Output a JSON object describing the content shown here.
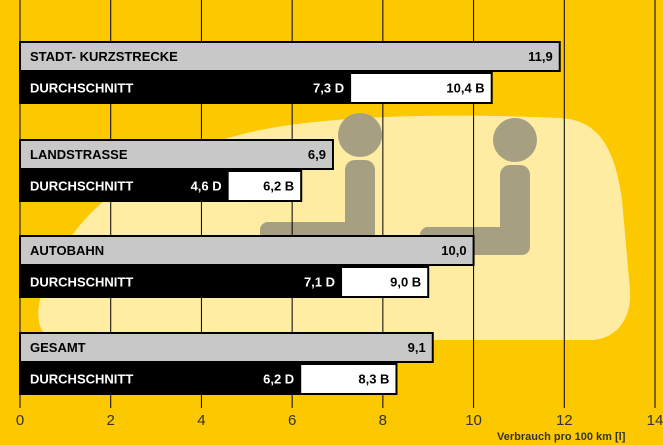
{
  "chart_data": {
    "type": "grouped-hbar",
    "categories": [
      "STADT- KURZSTRECKE",
      "LANDSTRASSE",
      "AUTOBAHN",
      "GESAMT"
    ],
    "row_label": "DURCHSCHNITT",
    "series": [
      {
        "color": "#c8c8c8",
        "values": [
          11.9,
          6.9,
          10.0,
          9.1
        ],
        "value_labels": [
          "11,9",
          "6,9",
          "10,0",
          "9,1"
        ]
      },
      {
        "color": "#000000",
        "values": [
          7.3,
          4.6,
          7.1,
          6.2
        ],
        "value_labels": [
          "7,3 D",
          "4,6 D",
          "7,1 D",
          "6,2 D"
        ]
      },
      {
        "color": "#ffffff",
        "values": [
          10.4,
          6.2,
          9.0,
          8.3
        ],
        "value_labels": [
          "10,4 B",
          "6,2 B",
          "9,0 B",
          "8,3 B"
        ]
      }
    ],
    "xlim": [
      0,
      14
    ],
    "xticks": [
      0,
      2,
      4,
      6,
      8,
      10,
      12,
      14
    ],
    "grid": true,
    "xlabel": "Verbrauch pro 100 km [l]"
  }
}
